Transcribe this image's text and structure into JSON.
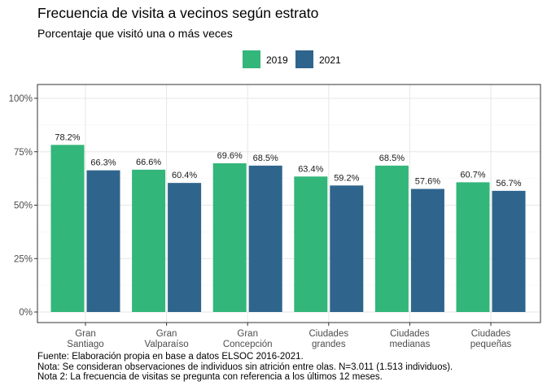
{
  "title": "Frecuencia de visita a vecinos según estrato",
  "subtitle": "Porcentaje que visitó una o más veces",
  "chart_data": {
    "type": "bar",
    "categories": [
      [
        "Gran",
        "Santiago"
      ],
      [
        "Gran",
        "Valparaíso"
      ],
      [
        "Gran",
        "Concepción"
      ],
      [
        "Ciudades",
        "grandes"
      ],
      [
        "Ciudades",
        "medianas"
      ],
      [
        "Ciudades",
        "pequeñas"
      ]
    ],
    "series": [
      {
        "name": "2019",
        "color": "#33b67a",
        "values": [
          78.2,
          66.6,
          69.6,
          63.4,
          68.5,
          60.7
        ],
        "labels": [
          "78.2%",
          "66.6%",
          "69.6%",
          "63.4%",
          "68.5%",
          "60.7%"
        ]
      },
      {
        "name": "2021",
        "color": "#2f658c",
        "values": [
          66.3,
          60.4,
          68.5,
          59.2,
          57.6,
          56.7
        ],
        "labels": [
          "66.3%",
          "60.4%",
          "68.5%",
          "59.2%",
          "57.6%",
          "56.7%"
        ]
      }
    ],
    "y_ticks": [
      0,
      25,
      50,
      75,
      100
    ],
    "y_tick_labels": [
      "0%",
      "25%",
      "50%",
      "75%",
      "100%"
    ],
    "ylim": [
      0,
      100
    ],
    "legend_position": "top",
    "grid": true
  },
  "footer": {
    "line1": "Fuente: Elaboración propia en base a datos ELSOC 2016-2021.",
    "line2": "Nota: Se consideran observaciones de individuos sin atrición entre olas. N=3.011 (1.513 individuos).",
    "line3": "Nota 2: La frecuencia de visitas se pregunta con referencia a los últimos 12 meses."
  }
}
